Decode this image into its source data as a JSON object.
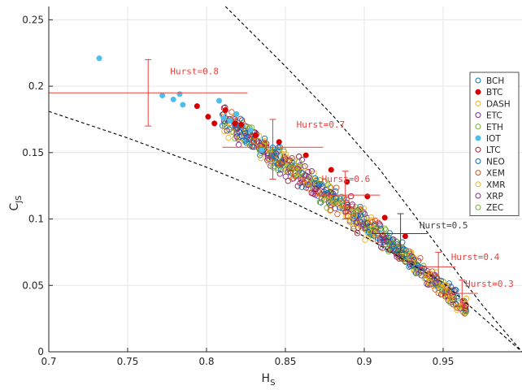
{
  "chart_data": {
    "type": "scatter",
    "xlabel": "H",
    "xlabel_sub": "S",
    "ylabel": "C",
    "ylabel_sub": "JS",
    "xlim": [
      0.7,
      1.0
    ],
    "ylim": [
      0,
      0.26
    ],
    "xticks": [
      0.7,
      0.75,
      0.8,
      0.85,
      0.9,
      0.95
    ],
    "xtick_labels": [
      "0.7",
      "0.75",
      "0.8",
      "0.85",
      "0.9",
      "0.95"
    ],
    "yticks": [
      0,
      0.05,
      0.1,
      0.15,
      0.2,
      0.25
    ],
    "ytick_labels": [
      "0",
      "0.05",
      "0.1",
      "0.15",
      "0.2",
      "0.25"
    ],
    "grid": true,
    "legend_position": "right",
    "series": [
      {
        "name": "BCH",
        "color": "#0072BD",
        "filled": false
      },
      {
        "name": "BTC",
        "color": "#D40000",
        "filled": true
      },
      {
        "name": "DASH",
        "color": "#EDB120",
        "filled": false
      },
      {
        "name": "ETC",
        "color": "#7E2F8E",
        "filled": false
      },
      {
        "name": "ETH",
        "color": "#77AC30",
        "filled": false
      },
      {
        "name": "IOT",
        "color": "#4DBEEE",
        "filled": true
      },
      {
        "name": "LTC",
        "color": "#A2142F",
        "filled": false
      },
      {
        "name": "NEO",
        "color": "#0072BD",
        "filled": false
      },
      {
        "name": "XEM",
        "color": "#D95319",
        "filled": false
      },
      {
        "name": "XMR",
        "color": "#EDB120",
        "filled": false
      },
      {
        "name": "XRP",
        "color": "#7E2F8E",
        "filled": false
      },
      {
        "name": "ZEC",
        "color": "#77AC30",
        "filled": false
      }
    ],
    "iot_points": [
      [
        0.732,
        0.221
      ],
      [
        0.772,
        0.193
      ],
      [
        0.779,
        0.19
      ],
      [
        0.783,
        0.194
      ],
      [
        0.785,
        0.186
      ],
      [
        0.808,
        0.189
      ],
      [
        0.811,
        0.176
      ],
      [
        0.815,
        0.174
      ],
      [
        0.819,
        0.179
      ],
      [
        0.828,
        0.167
      ],
      [
        0.835,
        0.152
      ]
    ],
    "btc_points": [
      [
        0.794,
        0.185
      ],
      [
        0.801,
        0.177
      ],
      [
        0.805,
        0.172
      ],
      [
        0.812,
        0.182
      ],
      [
        0.818,
        0.172
      ],
      [
        0.822,
        0.171
      ],
      [
        0.831,
        0.163
      ],
      [
        0.846,
        0.158
      ],
      [
        0.863,
        0.148
      ],
      [
        0.879,
        0.137
      ],
      [
        0.889,
        0.128
      ],
      [
        0.902,
        0.117
      ],
      [
        0.913,
        0.101
      ],
      [
        0.926,
        0.087
      ]
    ],
    "band_segments": [
      {
        "x_from": 0.81,
        "x_to": 0.85,
        "y_center": 0.173,
        "y_spread": 0.006
      },
      {
        "x_from": 0.85,
        "x_to": 0.88,
        "y_center": 0.152,
        "y_spread": 0.006
      },
      {
        "x_from": 0.88,
        "x_to": 0.905,
        "y_center": 0.125,
        "y_spread": 0.006
      },
      {
        "x_from": 0.905,
        "x_to": 0.925,
        "y_center": 0.1,
        "y_spread": 0.005
      },
      {
        "x_from": 0.925,
        "x_to": 0.945,
        "y_center": 0.077,
        "y_spread": 0.004
      },
      {
        "x_from": 0.945,
        "x_to": 0.965,
        "y_center": 0.053,
        "y_spread": 0.004
      }
    ],
    "upper_boundary": [
      [
        0.812,
        0.26
      ],
      [
        0.85,
        0.215
      ],
      [
        0.88,
        0.178
      ],
      [
        0.91,
        0.137
      ],
      [
        0.94,
        0.09
      ],
      [
        0.96,
        0.058
      ],
      [
        0.975,
        0.035
      ],
      [
        1.0,
        0.0
      ]
    ],
    "lower_boundary": [
      [
        0.7,
        0.181
      ],
      [
        0.75,
        0.161
      ],
      [
        0.8,
        0.139
      ],
      [
        0.85,
        0.115
      ],
      [
        0.9,
        0.087
      ],
      [
        0.95,
        0.052
      ],
      [
        1.0,
        0.0
      ]
    ],
    "hurst_markers": [
      {
        "label": "Hurst=0.8",
        "x": 0.763,
        "y": 0.195,
        "x_err": [
          0.7,
          0.826
        ],
        "y_err": [
          0.17,
          0.22
        ],
        "color": "#E8423F",
        "label_x": 0.777,
        "label_y": 0.209
      },
      {
        "label": "Hurst=0.7",
        "x": 0.842,
        "y": 0.154,
        "x_err": [
          0.81,
          0.874
        ],
        "y_err": [
          0.13,
          0.175
        ],
        "color": "#E8423F",
        "label_x": 0.857,
        "label_y": 0.169
      },
      {
        "label": "Hurst=0.6",
        "x": 0.888,
        "y": 0.118,
        "x_err": [
          0.868,
          0.91
        ],
        "y_err": [
          0.1,
          0.136
        ],
        "color": "#E8423F",
        "label_x": 0.873,
        "label_y": 0.128
      },
      {
        "label": "Hurst=0.5",
        "x": 0.923,
        "y": 0.089,
        "x_err": [
          0.905,
          0.94
        ],
        "y_err": [
          0.075,
          0.104
        ],
        "color": "#404040",
        "label_x": 0.935,
        "label_y": 0.093
      },
      {
        "label": "Hurst=0.4",
        "x": 0.947,
        "y": 0.064,
        "x_err": [
          0.935,
          0.958
        ],
        "y_err": [
          0.055,
          0.075
        ],
        "color": "#E8423F",
        "label_x": 0.955,
        "label_y": 0.069
      },
      {
        "label": "Hurst=0.3",
        "x": 0.962,
        "y": 0.044,
        "x_err": [
          0.953,
          0.972
        ],
        "y_err": [
          0.034,
          0.054
        ],
        "color": "#E8423F",
        "label_x": 0.964,
        "label_y": 0.049
      }
    ]
  }
}
